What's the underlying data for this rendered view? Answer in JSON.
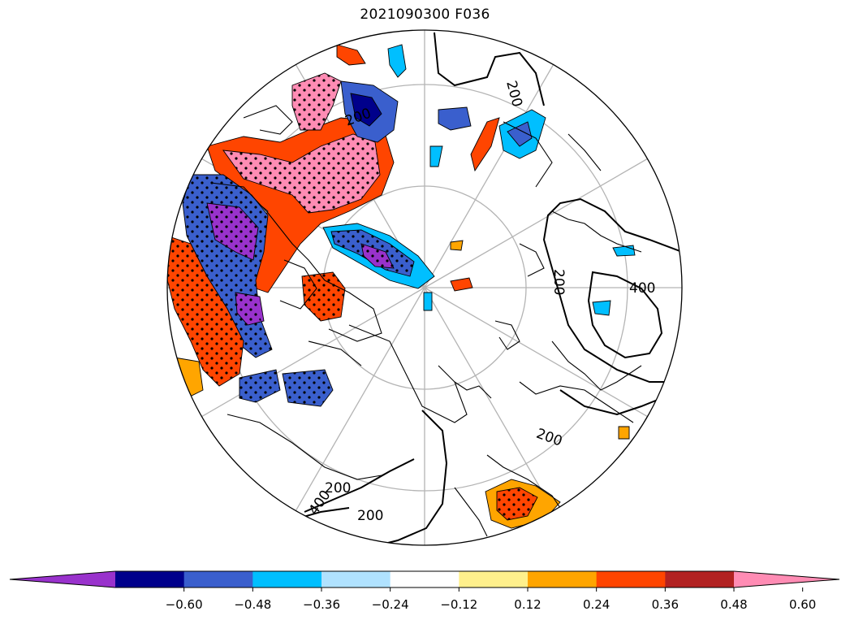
{
  "title": "2021090300 F036",
  "colorbar": {
    "extend": "both",
    "colors": [
      "#9932cc",
      "#00008b",
      "#3a5fcd",
      "#00bfff",
      "#b0e2ff",
      "#ffffff",
      "#fff08c",
      "#ffa500",
      "#ff4500",
      "#b22222",
      "#ff8cb4"
    ],
    "tick_labels": [
      "−0.60",
      "−0.48",
      "−0.36",
      "−0.24",
      "−0.12",
      "0.12",
      "0.24",
      "0.36",
      "0.48",
      "0.60"
    ]
  },
  "contour_labels": [
    "200",
    "200",
    "400",
    "200",
    "200",
    "400",
    "200",
    "200"
  ],
  "map": {
    "projection": "north-polar-stereographic",
    "coastline_color": "#000000",
    "graticule_color": "#b4b4b4",
    "stipple": true
  }
}
